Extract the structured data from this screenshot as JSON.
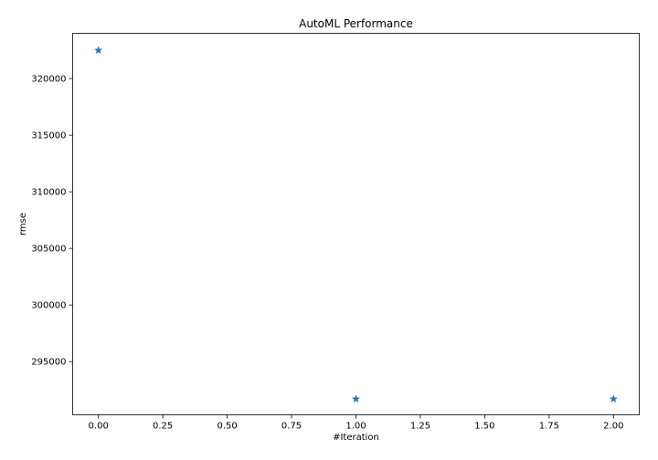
{
  "chart_data": {
    "type": "scatter",
    "title": "AutoML Performance",
    "xlabel": "#Iteration",
    "ylabel": "rmse",
    "xlim": [
      -0.1,
      2.1
    ],
    "ylim": [
      290300,
      324000
    ],
    "x_ticks": [
      0.0,
      0.25,
      0.5,
      0.75,
      1.0,
      1.25,
      1.5,
      1.75,
      2.0
    ],
    "x_tick_labels": [
      "0.00",
      "0.25",
      "0.50",
      "0.75",
      "1.00",
      "1.25",
      "1.50",
      "1.75",
      "2.00"
    ],
    "y_ticks": [
      295000,
      300000,
      305000,
      310000,
      315000,
      320000
    ],
    "y_tick_labels": [
      "295000",
      "300000",
      "305000",
      "310000",
      "315000",
      "320000"
    ],
    "marker": "star",
    "color": "#1f77b4",
    "grid": false,
    "legend": "none",
    "series": [
      {
        "x": [
          0,
          1,
          2
        ],
        "y": [
          322500,
          291700,
          291700
        ]
      }
    ]
  }
}
